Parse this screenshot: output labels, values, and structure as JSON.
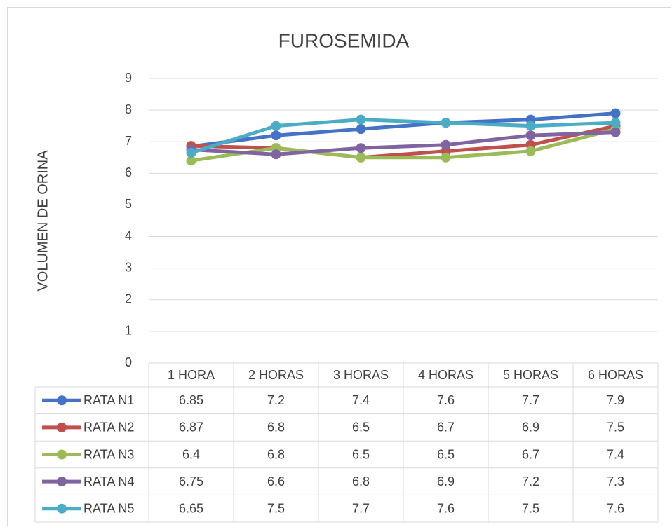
{
  "chart_data": {
    "type": "line",
    "title": "FUROSEMIDA",
    "y_label": "VOLUMEN DE ORINA",
    "categories": [
      "1 HORA",
      "2 HORAS",
      "3 HORAS",
      "4 HORAS",
      "5 HORAS",
      "6 HORAS"
    ],
    "series": [
      {
        "name": "RATA N1",
        "color": "#4472c4",
        "values": [
          6.85,
          7.2,
          7.4,
          7.6,
          7.7,
          7.9
        ]
      },
      {
        "name": "RATA N2",
        "color": "#c0504d",
        "values": [
          6.87,
          6.8,
          6.5,
          6.7,
          6.9,
          7.5
        ]
      },
      {
        "name": "RATA N3",
        "color": "#9bbb59",
        "values": [
          6.4,
          6.8,
          6.5,
          6.5,
          6.7,
          7.4
        ]
      },
      {
        "name": "RATA N4",
        "color": "#8064a2",
        "values": [
          6.75,
          6.6,
          6.8,
          6.9,
          7.2,
          7.3
        ]
      },
      {
        "name": "RATA N5",
        "color": "#4bacc6",
        "values": [
          6.65,
          7.5,
          7.7,
          7.6,
          7.5,
          7.6
        ]
      }
    ],
    "ylim": [
      0,
      9
    ],
    "yticks": [
      0,
      1,
      2,
      3,
      4,
      5,
      6,
      7,
      8,
      9
    ],
    "grid": true,
    "data_table": true
  }
}
